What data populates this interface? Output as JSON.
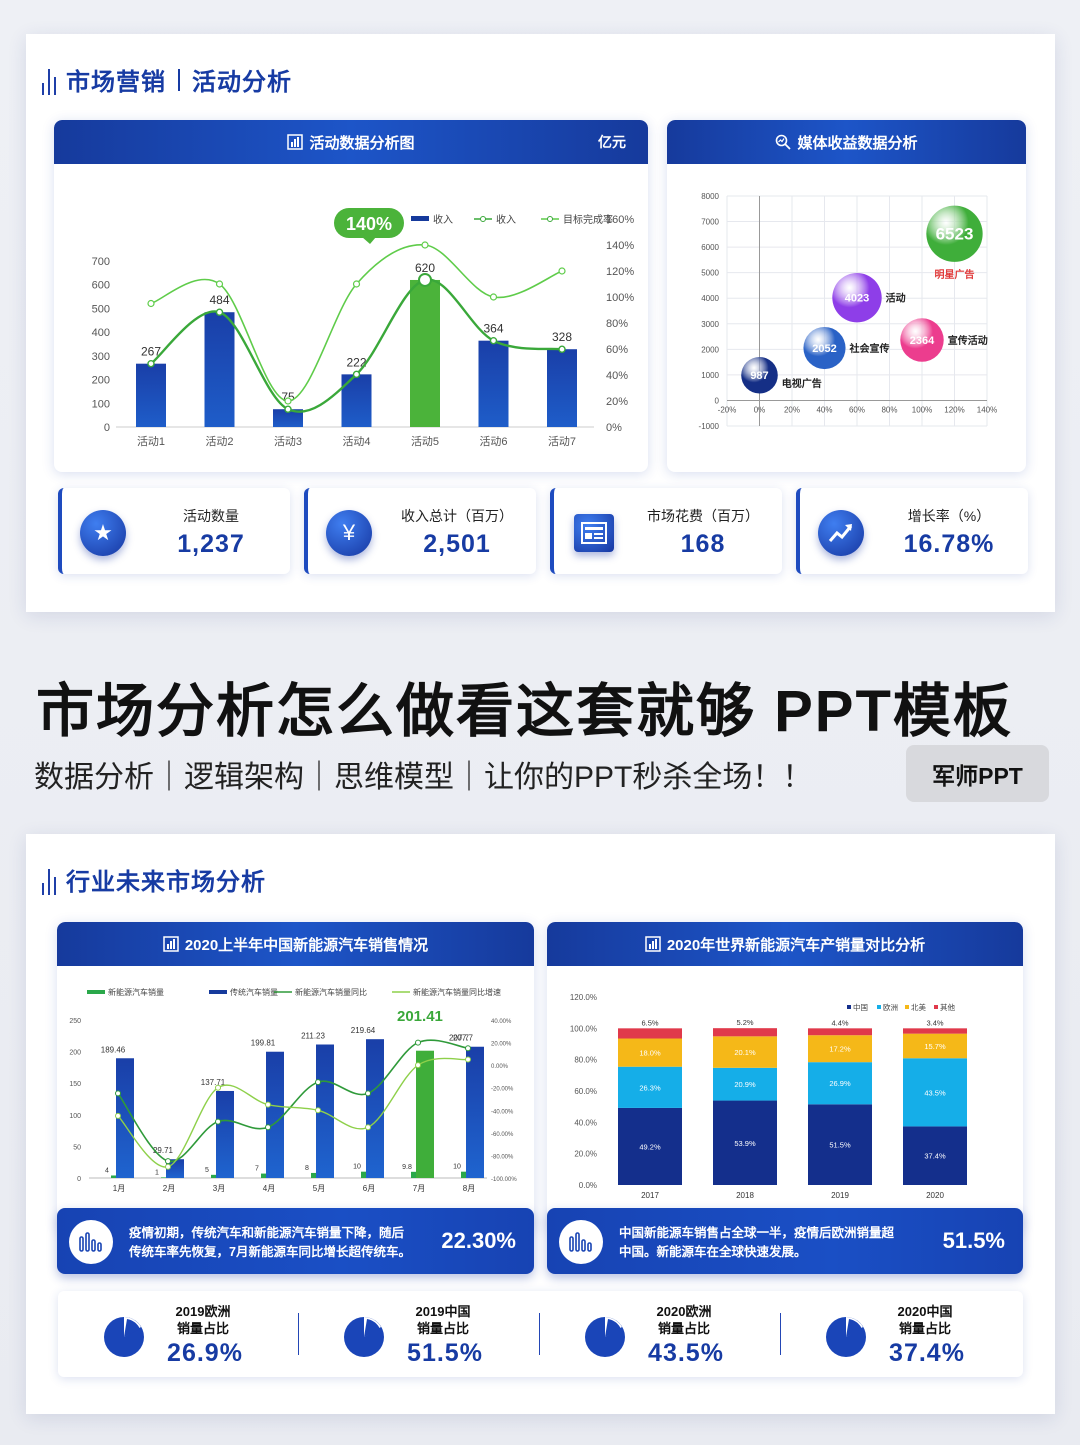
{
  "slide1": {
    "title_left": "市场营销",
    "title_right": "活动分析",
    "chart1": {
      "header": "活动数据分析图",
      "unit": "亿元",
      "legend": [
        "收入",
        "收入",
        "目标完成率"
      ],
      "callout": "140%"
    },
    "chart2": {
      "header": "媒体收益数据分析"
    },
    "kpis": [
      {
        "label": "活动数量",
        "value": "1,237",
        "icon": "star-icon"
      },
      {
        "label": "收入总计（百万）",
        "value": "2,501",
        "icon": "money-bag-icon"
      },
      {
        "label": "市场花费（百万）",
        "value": "168",
        "icon": "list-card-icon"
      },
      {
        "label": "增长率（%）",
        "value": "16.78%",
        "icon": "trend-up-icon"
      }
    ]
  },
  "middle": {
    "title": "市场分析怎么做看这套就够 PPT模板",
    "subtitle": "数据分析｜逻辑架构｜思维模型｜让你的PPT秒杀全场！！",
    "badge": "军师PPT"
  },
  "slide2": {
    "title": "行业未来市场分析",
    "chart3": {
      "header": "2020上半年中国新能源汽车销售情况",
      "legend": [
        "新能源汽车销量",
        "传统汽车销量",
        "新能源汽车销量同比",
        "新能源汽车销量同比增速"
      ],
      "callout": "201.41"
    },
    "chart4": {
      "header": "2020年世界新能源汽车产销量对比分析",
      "legend": [
        "中国",
        "欧洲",
        "北美",
        "其他"
      ]
    },
    "banner_left": {
      "text_line1": "疫情初期，传统汽车和新能源汽车销量下降，随后",
      "text_line2": "传统车率先恢复，7月新能源车同比增长超传统车。",
      "value": "22.30%"
    },
    "banner_right": {
      "text_line1": "中国新能源车销售占全球一半，疫情后欧洲销量超",
      "text_line2": "中国。新能源车在全球快速发展。",
      "value": "51.5%"
    },
    "shares": [
      {
        "line1": "2019欧洲",
        "line2": "销量占比",
        "value": "26.9%"
      },
      {
        "line1": "2019中国",
        "line2": "销量占比",
        "value": "51.5%"
      },
      {
        "line1": "2020欧洲",
        "line2": "销量占比",
        "value": "43.5%"
      },
      {
        "line1": "2020中国",
        "line2": "销量占比",
        "value": "37.4%"
      }
    ]
  },
  "chart_data": [
    {
      "type": "bar",
      "categories": [
        "活动1",
        "活动2",
        "活动3",
        "活动4",
        "活动5",
        "活动6",
        "活动7"
      ],
      "series": [
        {
          "name": "收入",
          "values": [
            267,
            484,
            75,
            222,
            620,
            364,
            328
          ]
        },
        {
          "name": "收入",
          "values": [
            267,
            484,
            75,
            222,
            620,
            364,
            328
          ]
        },
        {
          "name": "目标完成率",
          "values": [
            95,
            110,
            20,
            110,
            140,
            100,
            120
          ]
        }
      ],
      "ylim": [
        0,
        700
      ],
      "yticks": [
        0,
        100,
        200,
        300,
        400,
        500,
        600,
        700
      ],
      "y2lim": [
        0,
        160
      ],
      "y2ticks": [
        "0%",
        "20%",
        "40%",
        "60%",
        "80%",
        "100%",
        "120%",
        "140%",
        "160%"
      ],
      "highlight_color": "#4bb33a",
      "bar_color": "#163a9c"
    },
    {
      "type": "scatter",
      "points": [
        {
          "x": 0,
          "y": 987,
          "size": 987,
          "label": "电视广告",
          "color": "#152f86"
        },
        {
          "x": 40,
          "y": 2052,
          "size": 2052,
          "label": "社会宣传",
          "color": "#2a62c6"
        },
        {
          "x": 60,
          "y": 4023,
          "size": 4023,
          "label": "活动",
          "color": "#8e3ee8"
        },
        {
          "x": 100,
          "y": 2364,
          "size": 2364,
          "label": "宣传活动",
          "color": "#ec3d8e"
        },
        {
          "x": 120,
          "y": 6523,
          "size": 6523,
          "label": "明星广告",
          "color": "#3fae3a"
        }
      ],
      "xticks": [
        "-20%",
        "0%",
        "20%",
        "40%",
        "60%",
        "80%",
        "100%",
        "120%",
        "140%"
      ],
      "yticks": [
        -1000,
        0,
        1000,
        2000,
        3000,
        4000,
        5000,
        6000,
        7000,
        8000
      ]
    },
    {
      "type": "bar",
      "categories": [
        "1月",
        "2月",
        "3月",
        "4月",
        "5月",
        "6月",
        "7月",
        "8月"
      ],
      "series": [
        {
          "name": "新能源汽车销量",
          "values": [
            4,
            1,
            5,
            7,
            8,
            10,
            9.8,
            10
          ]
        },
        {
          "name": "传统汽车销量",
          "values": [
            189.46,
            29.71,
            137.71,
            199.81,
            211.23,
            219.64,
            201.41,
            207.7
          ]
        },
        {
          "name": "新能源汽车销量同比",
          "values": [
            -25,
            -85,
            -50,
            -55,
            -15,
            -25,
            20,
            15
          ]
        },
        {
          "name": "新能源汽车销量同比增速",
          "values": [
            -45,
            -90,
            -20,
            -35,
            -40,
            -55,
            0,
            5
          ]
        }
      ],
      "ylim": [
        0,
        250
      ],
      "yticks": [
        0,
        50,
        100,
        150,
        200,
        250
      ],
      "y2ticks": [
        "-100.00%",
        "-80.00%",
        "-60.00%",
        "-40.00%",
        "-20.00%",
        "0.00%",
        "20.00%",
        "40.00%"
      ]
    },
    {
      "type": "bar",
      "stacked": true,
      "categories": [
        "2017",
        "2018",
        "2019",
        "2020"
      ],
      "series": [
        {
          "name": "中国",
          "values": [
            49.2,
            53.9,
            51.5,
            37.4
          ],
          "color": "#142f8c"
        },
        {
          "name": "欧洲",
          "values": [
            26.3,
            20.9,
            26.9,
            43.5
          ],
          "color": "#15aee8"
        },
        {
          "name": "北美",
          "values": [
            18.0,
            20.1,
            17.2,
            15.7
          ],
          "color": "#f5b818"
        },
        {
          "name": "其他",
          "values": [
            6.5,
            5.2,
            4.4,
            3.4
          ],
          "color": "#e0394b"
        }
      ],
      "yticks": [
        "0.0%",
        "20.0%",
        "40.0%",
        "60.0%",
        "80.0%",
        "100.0%",
        "120.0%"
      ]
    }
  ]
}
